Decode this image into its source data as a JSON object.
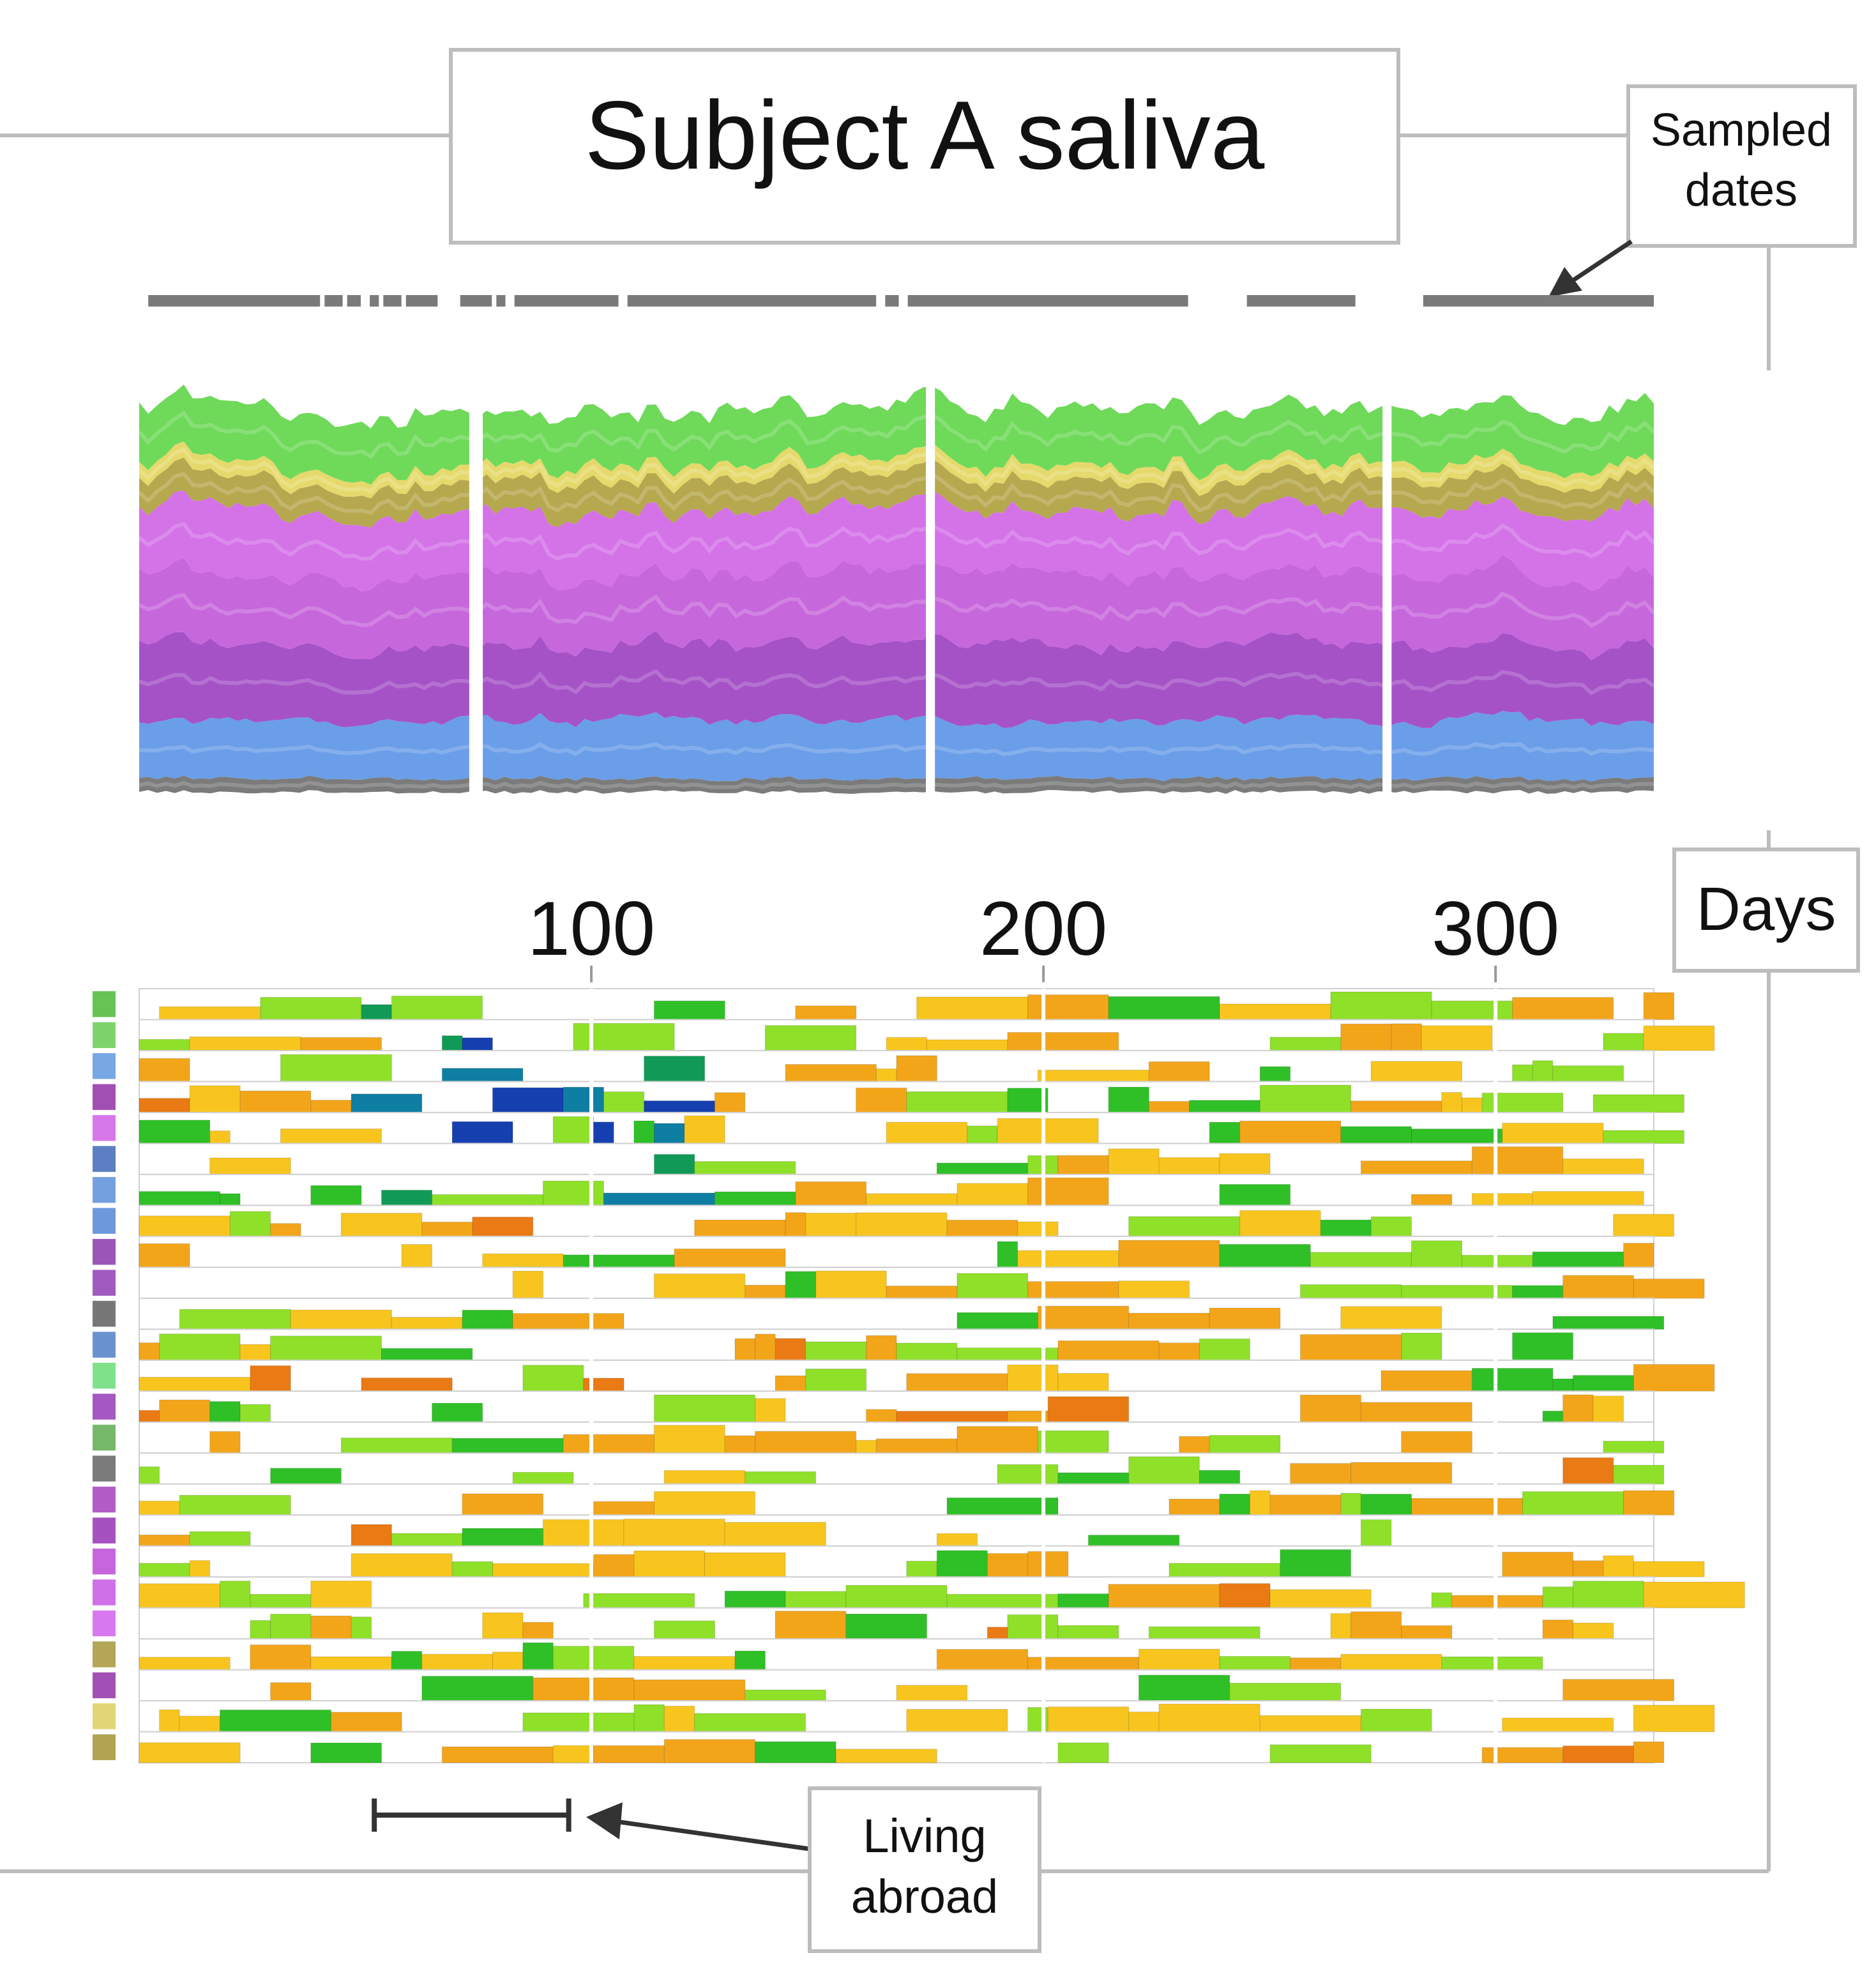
{
  "title": "Subject A saliva",
  "annotations": {
    "sampled_dates": [
      "Sampled",
      "dates"
    ],
    "days": "Days",
    "living_abroad": [
      "Living",
      "abroad"
    ]
  },
  "chart_data": [
    {
      "type": "area",
      "title": "Subject A saliva",
      "xlabel": "Days",
      "x_range": [
        0,
        335
      ],
      "stack_total": 100,
      "segments": [
        [
          0,
          73
        ],
        [
          76,
          174
        ],
        [
          176,
          275
        ],
        [
          277,
          335
        ]
      ],
      "layers": [
        {
          "name": "Gray group",
          "color": "#7b7b7b",
          "value": 3.5
        },
        {
          "name": "Blue group",
          "color": "#6b9ee8",
          "value": 15
        },
        {
          "name": "Purple group (dark)",
          "color": "#a552c7",
          "value": 20
        },
        {
          "name": "Purple group (mid)",
          "color": "#c767dc",
          "value": 18
        },
        {
          "name": "Purple group (light)",
          "color": "#d472e8",
          "value": 17
        },
        {
          "name": "Olive group",
          "color": "#b6a84f",
          "value": 8
        },
        {
          "name": "Yellow group",
          "color": "#e6d96c",
          "value": 4
        },
        {
          "name": "Green group",
          "color": "#6fd95a",
          "value": 14.5
        }
      ],
      "sampled_date_spans": [
        [
          2,
          40
        ],
        [
          41,
          45
        ],
        [
          46,
          49
        ],
        [
          51,
          53
        ],
        [
          54,
          58
        ],
        [
          59,
          66
        ],
        [
          71,
          78
        ],
        [
          79,
          81
        ],
        [
          83,
          106
        ],
        [
          108,
          163
        ],
        [
          165,
          168
        ],
        [
          170,
          232
        ],
        [
          245,
          269
        ],
        [
          284,
          335
        ]
      ]
    },
    {
      "type": "heatmap",
      "xlabel": "Days",
      "x_ticks": [
        100,
        200,
        300
      ],
      "x_range": [
        0,
        335
      ],
      "rows": 25,
      "row_colors": [
        "#66c455",
        "#7ed46b",
        "#78a8e4",
        "#a24fb4",
        "#d778ea",
        "#5c7fc4",
        "#74a0e0",
        "#6e98dc",
        "#9b55b8",
        "#a15ac0",
        "#777777",
        "#6b92d0",
        "#7fe28a",
        "#a557c2",
        "#76b86a",
        "#7a7a7a",
        "#b35cc8",
        "#a551c0",
        "#c765dc",
        "#d070e8",
        "#d979ef",
        "#b3a656",
        "#a350b6",
        "#e0d675",
        "#b0a451"
      ],
      "living_abroad": [
        52,
        95
      ]
    }
  ]
}
